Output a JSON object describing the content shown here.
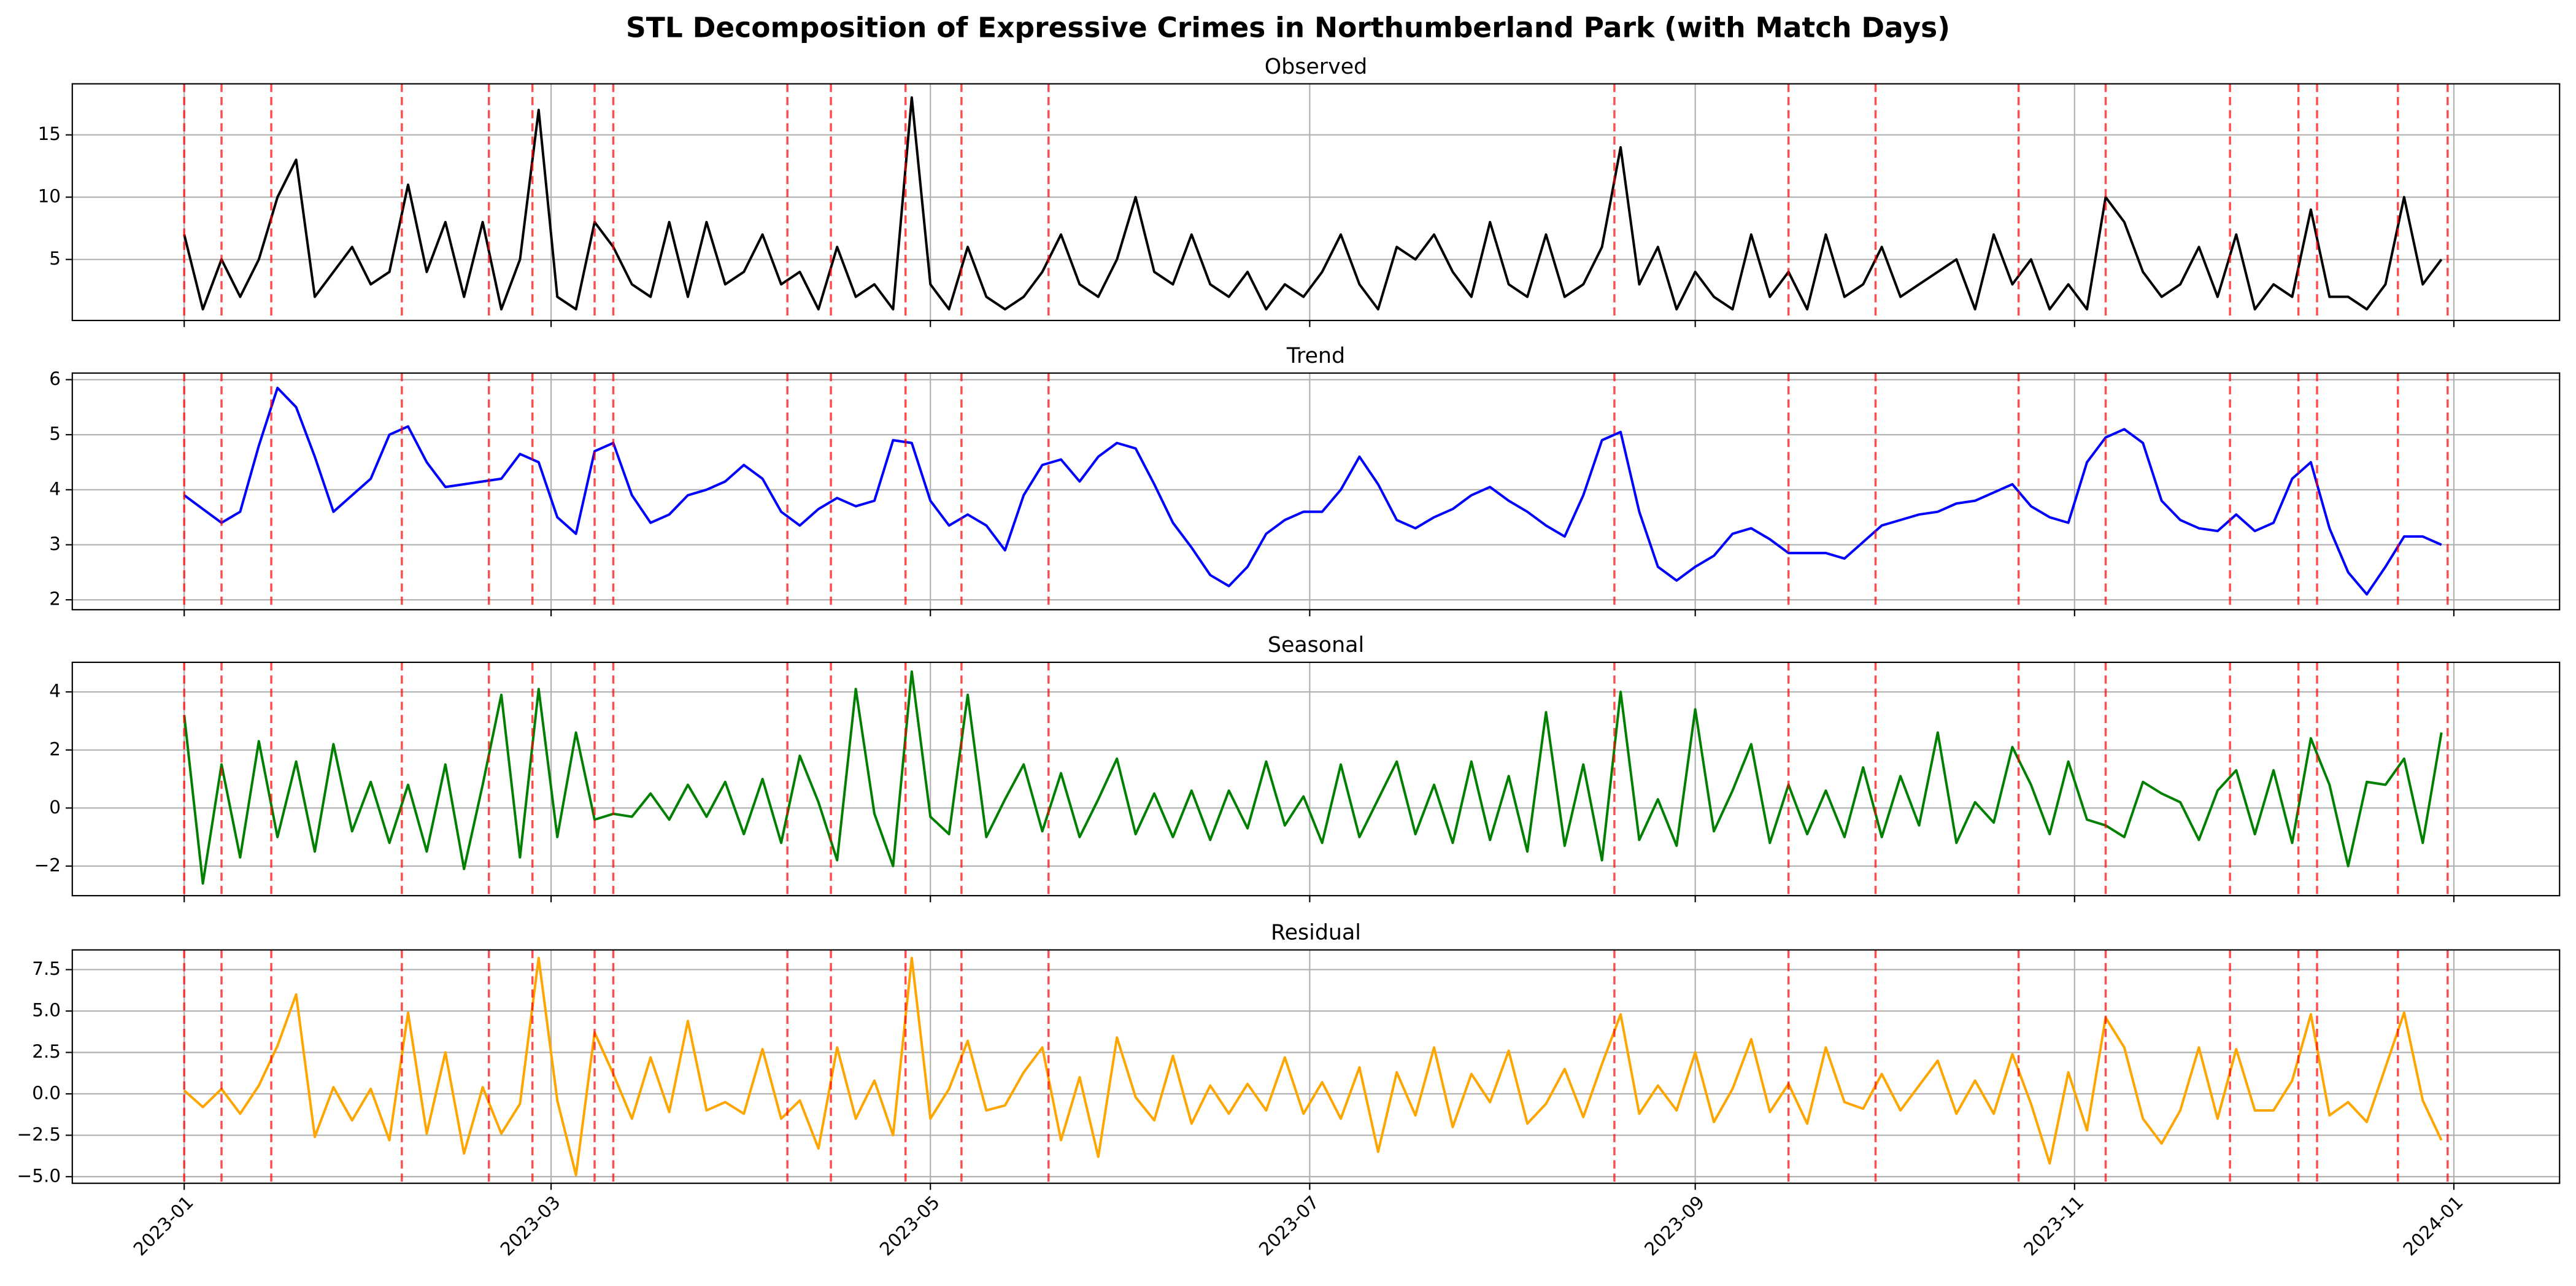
{
  "title": "STL Decomposition of Expressive Crimes in Northumberland Park (with Match Days)",
  "xlim": [
    -18,
    382
  ],
  "xticks": [
    {
      "value": 0,
      "label": "2023-01"
    },
    {
      "value": 59,
      "label": "2023-03"
    },
    {
      "value": 120,
      "label": "2023-05"
    },
    {
      "value": 181,
      "label": "2023-07"
    },
    {
      "value": 243,
      "label": "2023-09"
    },
    {
      "value": 304,
      "label": "2023-11"
    },
    {
      "value": 365,
      "label": "2024-01"
    }
  ],
  "match_days": [
    0,
    6,
    14,
    35,
    49,
    56,
    66,
    69,
    97,
    104,
    116,
    125,
    139,
    230,
    258,
    272,
    295,
    309,
    329,
    340,
    343,
    356,
    364
  ],
  "match_color": "#ff0000",
  "grid": true,
  "x": [
    0,
    3,
    6,
    9,
    12,
    15,
    18,
    21,
    24,
    27,
    30,
    33,
    36,
    39,
    42,
    45,
    48,
    51,
    54,
    57,
    60,
    63,
    66,
    69,
    72,
    75,
    78,
    81,
    84,
    87,
    90,
    93,
    96,
    99,
    102,
    105,
    108,
    111,
    114,
    117,
    120,
    123,
    126,
    129,
    132,
    135,
    138,
    141,
    144,
    147,
    150,
    153,
    156,
    159,
    162,
    165,
    168,
    171,
    174,
    177,
    180,
    183,
    186,
    189,
    192,
    195,
    198,
    201,
    204,
    207,
    210,
    213,
    216,
    219,
    222,
    225,
    228,
    231,
    234,
    237,
    240,
    243,
    246,
    249,
    252,
    255,
    258,
    261,
    264,
    267,
    270,
    273,
    276,
    279,
    282,
    285,
    288,
    291,
    294,
    297,
    300,
    303,
    306,
    309,
    312,
    315,
    318,
    321,
    324,
    327,
    330,
    333,
    336,
    339,
    342,
    345,
    348,
    351,
    354,
    357,
    360,
    363
  ],
  "chart_data": [
    {
      "type": "line",
      "title": "Observed",
      "color": "#000000",
      "ylim": [
        0.1,
        19.1
      ],
      "yticks": [
        5,
        10,
        15
      ],
      "values": [
        7,
        1,
        5,
        2,
        5,
        10,
        13,
        2,
        4,
        6,
        3,
        4,
        11,
        4,
        8,
        2,
        8,
        1,
        5,
        17,
        2,
        1,
        8,
        6,
        3,
        2,
        8,
        2,
        8,
        3,
        4,
        7,
        3,
        4,
        1,
        6,
        2,
        3,
        1,
        18,
        3,
        1,
        6,
        2,
        1,
        2,
        4,
        7,
        3,
        2,
        5,
        10,
        4,
        3,
        7,
        3,
        2,
        4,
        1,
        3,
        2,
        4,
        7,
        3,
        1,
        6,
        5,
        7,
        4,
        2,
        8,
        3,
        2,
        7,
        2,
        3,
        6,
        14,
        3,
        6,
        1,
        4,
        2,
        1,
        7,
        2,
        4,
        1,
        7,
        2,
        3,
        6,
        2,
        3,
        4,
        5,
        1,
        7,
        3,
        5,
        1,
        3,
        1,
        10,
        8,
        4,
        2,
        3,
        6,
        2,
        7,
        1,
        3,
        2,
        9,
        2,
        2,
        1,
        3,
        10,
        3,
        5
      ]
    },
    {
      "type": "line",
      "title": "Trend",
      "color": "#0000ff",
      "ylim": [
        1.82,
        6.12
      ],
      "yticks": [
        2,
        3,
        4,
        5,
        6
      ],
      "values": [
        3.9,
        3.65,
        3.4,
        3.6,
        4.8,
        5.85,
        5.5,
        4.6,
        3.6,
        3.9,
        4.2,
        5.0,
        5.15,
        4.5,
        4.05,
        4.1,
        4.15,
        4.2,
        4.65,
        4.5,
        3.5,
        3.2,
        4.7,
        4.85,
        3.9,
        3.4,
        3.55,
        3.9,
        4.0,
        4.15,
        4.45,
        4.2,
        3.6,
        3.35,
        3.65,
        3.85,
        3.7,
        3.8,
        4.9,
        4.85,
        3.8,
        3.35,
        3.55,
        3.35,
        2.9,
        3.9,
        4.45,
        4.55,
        4.15,
        4.6,
        4.85,
        4.75,
        4.1,
        3.4,
        2.95,
        2.45,
        2.25,
        2.6,
        3.2,
        3.45,
        3.6,
        3.6,
        4.0,
        4.6,
        4.1,
        3.45,
        3.3,
        3.5,
        3.65,
        3.9,
        4.05,
        3.8,
        3.6,
        3.35,
        3.15,
        3.9,
        4.9,
        5.05,
        3.6,
        2.6,
        2.35,
        2.6,
        2.8,
        3.2,
        3.3,
        3.1,
        2.85,
        2.85,
        2.85,
        2.75,
        3.05,
        3.35,
        3.45,
        3.55,
        3.6,
        3.75,
        3.8,
        3.95,
        4.1,
        3.7,
        3.5,
        3.4,
        4.5,
        4.95,
        5.1,
        4.85,
        3.8,
        3.45,
        3.3,
        3.25,
        3.55,
        3.25,
        3.4,
        4.2,
        4.5,
        3.3,
        2.5,
        2.1,
        2.6,
        3.15,
        3.15,
        3.0
      ]
    },
    {
      "type": "line",
      "title": "Seasonal",
      "color": "#008000",
      "ylim": [
        -3.02,
        5.02
      ],
      "yticks": [
        {
          "value": -2,
          "label": "−2"
        },
        0,
        2,
        4
      ],
      "values": [
        3.2,
        -2.6,
        1.5,
        -1.7,
        2.3,
        -1.0,
        1.6,
        -1.5,
        2.2,
        -0.8,
        0.9,
        -1.2,
        0.8,
        -1.5,
        1.5,
        -2.1,
        0.8,
        3.9,
        -1.7,
        4.1,
        -1.0,
        2.6,
        -0.4,
        -0.2,
        -0.3,
        0.5,
        -0.4,
        0.8,
        -0.3,
        0.9,
        -0.9,
        1.0,
        -1.2,
        1.8,
        0.2,
        -1.8,
        4.1,
        -0.2,
        -2.0,
        4.7,
        -0.3,
        -0.9,
        3.9,
        -1.0,
        0.3,
        1.5,
        -0.8,
        1.2,
        -1.0,
        0.3,
        1.7,
        -0.9,
        0.5,
        -1.0,
        0.6,
        -1.1,
        0.6,
        -0.7,
        1.6,
        -0.6,
        0.4,
        -1.2,
        1.5,
        -1.0,
        0.3,
        1.6,
        -0.9,
        0.8,
        -1.2,
        1.6,
        -1.1,
        1.1,
        -1.5,
        3.3,
        -1.3,
        1.5,
        -1.8,
        4.0,
        -1.1,
        0.3,
        -1.3,
        3.4,
        -0.8,
        0.6,
        2.2,
        -1.2,
        0.8,
        -0.9,
        0.6,
        -1.0,
        1.4,
        -1.0,
        1.1,
        -0.6,
        2.6,
        -1.2,
        0.2,
        -0.5,
        2.1,
        0.8,
        -0.9,
        1.6,
        -0.4,
        -0.6,
        -1.0,
        0.9,
        0.5,
        0.2,
        -1.1,
        0.6,
        1.3,
        -0.9,
        1.3,
        -1.2,
        2.4,
        0.8,
        -2.0,
        0.9,
        0.8,
        1.7,
        -1.2,
        2.6
      ]
    },
    {
      "type": "line",
      "title": "Residual",
      "color": "#ffa500",
      "ylim": [
        -5.4,
        8.69
      ],
      "yticks": [
        {
          "value": -5,
          "label": "−5.0"
        },
        {
          "value": -2.5,
          "label": "−2.5"
        },
        {
          "value": 0,
          "label": "0.0"
        },
        2.5,
        {
          "value": 5,
          "label": "5.0"
        },
        7.5
      ],
      "values": [
        0.2,
        -0.8,
        0.3,
        -1.2,
        0.5,
        2.9,
        6.0,
        -2.6,
        0.4,
        -1.6,
        0.3,
        -2.8,
        4.9,
        -2.4,
        2.5,
        -3.6,
        0.4,
        -2.4,
        -0.6,
        8.2,
        -0.4,
        -4.9,
        3.7,
        1.2,
        -1.5,
        2.2,
        -1.1,
        4.4,
        -1.0,
        -0.5,
        -1.2,
        2.7,
        -1.5,
        -0.4,
        -3.3,
        2.8,
        -1.5,
        0.8,
        -2.5,
        8.2,
        -1.5,
        0.3,
        3.2,
        -1.0,
        -0.7,
        1.3,
        2.8,
        -2.8,
        1.0,
        -3.8,
        3.4,
        -0.2,
        -1.6,
        2.3,
        -1.8,
        0.5,
        -1.2,
        0.6,
        -1.0,
        2.2,
        -1.2,
        0.7,
        -1.5,
        1.6,
        -3.5,
        1.3,
        -1.3,
        2.8,
        -2.0,
        1.2,
        -0.5,
        2.6,
        -1.8,
        -0.6,
        1.5,
        -1.4,
        1.8,
        4.8,
        -1.2,
        0.5,
        -1.0,
        2.5,
        -1.7,
        0.3,
        3.3,
        -1.1,
        0.6,
        -1.8,
        2.8,
        -0.5,
        -0.9,
        1.2,
        -1.0,
        0.5,
        2.0,
        -1.2,
        0.8,
        -1.2,
        2.4,
        -0.6,
        -4.2,
        1.3,
        -2.2,
        4.6,
        2.8,
        -1.5,
        -3.0,
        -1.0,
        2.8,
        -1.5,
        2.7,
        -1.0,
        -1.0,
        0.8,
        4.8,
        -1.3,
        -0.5,
        -1.7,
        1.6,
        4.9,
        -0.4,
        -2.8
      ]
    }
  ]
}
